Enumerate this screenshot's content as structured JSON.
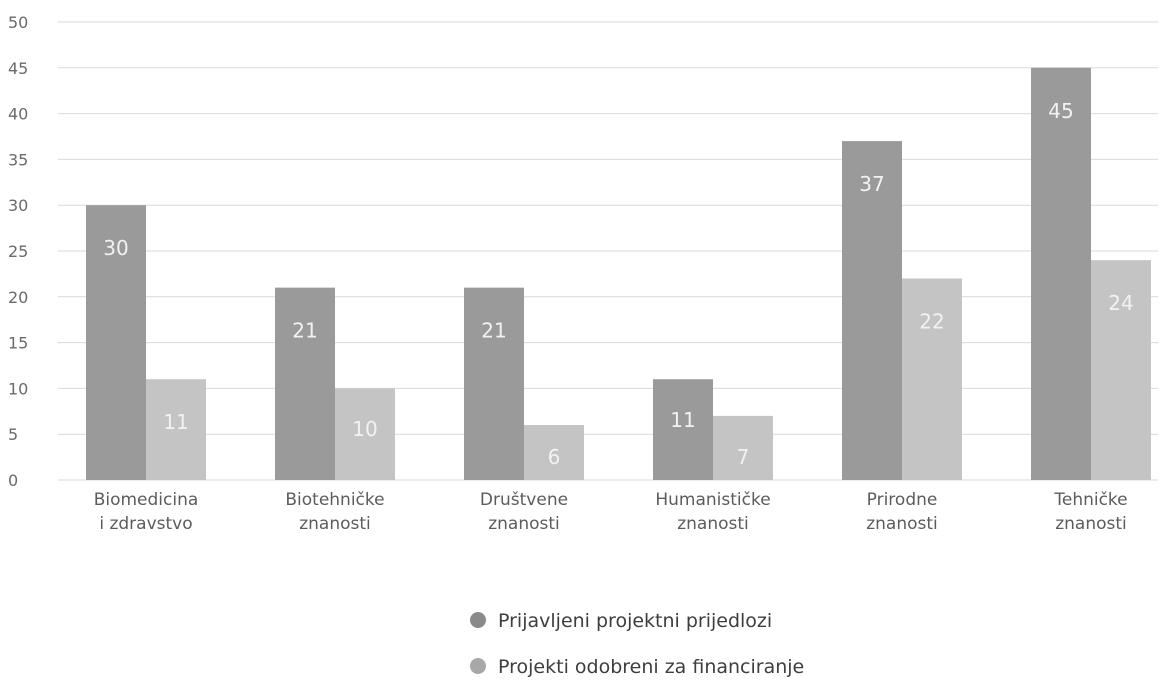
{
  "chart_data": {
    "type": "bar",
    "categories": [
      [
        "Biomedicina",
        "i zdravstvo"
      ],
      [
        "Biotehničke",
        "znanosti"
      ],
      [
        "Društvene",
        "znanosti"
      ],
      [
        "Humanističke",
        "znanosti"
      ],
      [
        "Prirodne",
        "znanosti"
      ],
      [
        "Tehničke",
        "znanosti"
      ]
    ],
    "series": [
      {
        "name": "Prijavljeni projektni prijedlozi",
        "values": [
          30,
          21,
          21,
          11,
          37,
          45
        ],
        "color": "#9a9a9a"
      },
      {
        "name": "Projekti odobreni za financiranje",
        "values": [
          11,
          10,
          6,
          7,
          22,
          24
        ],
        "color": "#c4c4c4"
      }
    ],
    "yticks": [
      "0",
      "5",
      "10",
      "15",
      "20",
      "25",
      "30",
      "35",
      "40",
      "45",
      "50"
    ],
    "ylim": [
      0,
      50
    ],
    "grid": true,
    "legend_position": "bottom-center"
  }
}
